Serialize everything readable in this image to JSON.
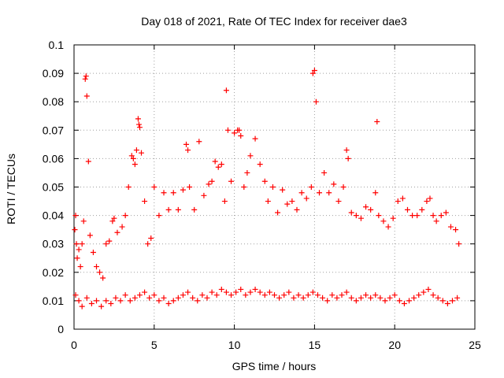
{
  "chart_data": {
    "type": "scatter",
    "title": "Day 018 of 2021, Rate Of TEC Index for receiver dae3",
    "xlabel": "GPS time / hours",
    "ylabel": "ROTI / TECUs",
    "xlim": [
      0,
      25
    ],
    "ylim": [
      0,
      0.1
    ],
    "x_ticks": [
      "0",
      "5",
      "10",
      "15",
      "20",
      "25"
    ],
    "y_ticks": [
      "0",
      "0.01",
      "0.02",
      "0.03",
      "0.04",
      "0.05",
      "0.06",
      "0.07",
      "0.08",
      "0.09",
      "0.1"
    ],
    "grid": true,
    "marker": "+",
    "color": "#ff0000",
    "series": [
      {
        "x": [
          0.05,
          0.1,
          0.15,
          0.2,
          0.3,
          0.4,
          0.5,
          0.6,
          0.7,
          0.75,
          0.8,
          0.9,
          1.0,
          1.2,
          1.4,
          1.6,
          1.8,
          2.0,
          2.2,
          2.4,
          2.5,
          2.7,
          3.0,
          3.2,
          3.4,
          3.6,
          3.7,
          3.8,
          3.9,
          4.0,
          4.05,
          4.1,
          4.2,
          4.4,
          4.6,
          4.8,
          5.0,
          5.3,
          5.6,
          5.9,
          6.2,
          6.5,
          6.8,
          7.0,
          7.1,
          7.2,
          7.5,
          7.8,
          8.1,
          8.4,
          8.6,
          8.8,
          9.0,
          9.2,
          9.4,
          9.5,
          9.6,
          9.8,
          10.0,
          10.2,
          10.3,
          10.4,
          10.6,
          10.8,
          11.0,
          11.3,
          11.6,
          11.9,
          12.1,
          12.4,
          12.7,
          13.0,
          13.3,
          13.6,
          13.9,
          14.2,
          14.5,
          14.8,
          14.9,
          15.0,
          15.1,
          15.3,
          15.6,
          15.9,
          16.2,
          16.5,
          16.8,
          17.0,
          17.1,
          17.3,
          17.6,
          17.9,
          18.2,
          18.5,
          18.8,
          18.9,
          19.0,
          19.3,
          19.6,
          19.9,
          20.2,
          20.5,
          20.8,
          21.1,
          21.4,
          21.7,
          22.0,
          22.2,
          22.4,
          22.6,
          22.9,
          23.2,
          23.5,
          23.8,
          24.0
        ],
        "y": [
          0.035,
          0.04,
          0.03,
          0.025,
          0.028,
          0.022,
          0.03,
          0.038,
          0.088,
          0.089,
          0.082,
          0.059,
          0.033,
          0.027,
          0.022,
          0.02,
          0.018,
          0.03,
          0.031,
          0.038,
          0.039,
          0.034,
          0.036,
          0.04,
          0.05,
          0.061,
          0.06,
          0.058,
          0.063,
          0.074,
          0.072,
          0.071,
          0.062,
          0.045,
          0.03,
          0.032,
          0.05,
          0.04,
          0.048,
          0.042,
          0.048,
          0.042,
          0.049,
          0.065,
          0.063,
          0.05,
          0.042,
          0.066,
          0.047,
          0.051,
          0.052,
          0.059,
          0.057,
          0.058,
          0.045,
          0.084,
          0.07,
          0.052,
          0.069,
          0.07,
          0.07,
          0.068,
          0.05,
          0.055,
          0.061,
          0.067,
          0.058,
          0.052,
          0.045,
          0.05,
          0.041,
          0.049,
          0.044,
          0.045,
          0.042,
          0.048,
          0.046,
          0.05,
          0.09,
          0.091,
          0.08,
          0.048,
          0.055,
          0.048,
          0.051,
          0.045,
          0.05,
          0.063,
          0.06,
          0.041,
          0.04,
          0.039,
          0.043,
          0.042,
          0.048,
          0.073,
          0.04,
          0.038,
          0.036,
          0.039,
          0.045,
          0.046,
          0.042,
          0.04,
          0.04,
          0.042,
          0.045,
          0.046,
          0.04,
          0.038,
          0.04,
          0.041,
          0.036,
          0.035,
          0.03
        ]
      },
      {
        "x": [
          0.1,
          0.3,
          0.5,
          0.8,
          1.1,
          1.4,
          1.7,
          2.0,
          2.3,
          2.6,
          2.9,
          3.2,
          3.5,
          3.8,
          4.1,
          4.4,
          4.7,
          5.0,
          5.3,
          5.6,
          5.9,
          6.2,
          6.5,
          6.8,
          7.1,
          7.4,
          7.7,
          8.0,
          8.3,
          8.6,
          8.9,
          9.2,
          9.5,
          9.8,
          10.1,
          10.4,
          10.7,
          11.0,
          11.3,
          11.6,
          11.9,
          12.2,
          12.5,
          12.8,
          13.1,
          13.4,
          13.7,
          14.0,
          14.3,
          14.6,
          14.9,
          15.2,
          15.5,
          15.8,
          16.1,
          16.4,
          16.7,
          17.0,
          17.3,
          17.6,
          17.9,
          18.2,
          18.5,
          18.8,
          19.1,
          19.4,
          19.7,
          20.0,
          20.3,
          20.6,
          20.9,
          21.2,
          21.5,
          21.8,
          22.1,
          22.4,
          22.7,
          23.0,
          23.3,
          23.6,
          23.9
        ],
        "y": [
          0.012,
          0.01,
          0.008,
          0.011,
          0.009,
          0.01,
          0.008,
          0.01,
          0.009,
          0.011,
          0.01,
          0.012,
          0.01,
          0.011,
          0.012,
          0.013,
          0.011,
          0.012,
          0.01,
          0.011,
          0.009,
          0.01,
          0.011,
          0.012,
          0.013,
          0.011,
          0.01,
          0.012,
          0.011,
          0.013,
          0.012,
          0.014,
          0.013,
          0.012,
          0.013,
          0.014,
          0.012,
          0.013,
          0.014,
          0.013,
          0.012,
          0.013,
          0.012,
          0.011,
          0.012,
          0.013,
          0.011,
          0.012,
          0.011,
          0.012,
          0.013,
          0.012,
          0.011,
          0.01,
          0.012,
          0.011,
          0.012,
          0.013,
          0.011,
          0.01,
          0.011,
          0.012,
          0.011,
          0.012,
          0.011,
          0.01,
          0.011,
          0.012,
          0.01,
          0.009,
          0.01,
          0.011,
          0.012,
          0.013,
          0.014,
          0.012,
          0.011,
          0.01,
          0.009,
          0.01,
          0.011
        ]
      }
    ]
  }
}
